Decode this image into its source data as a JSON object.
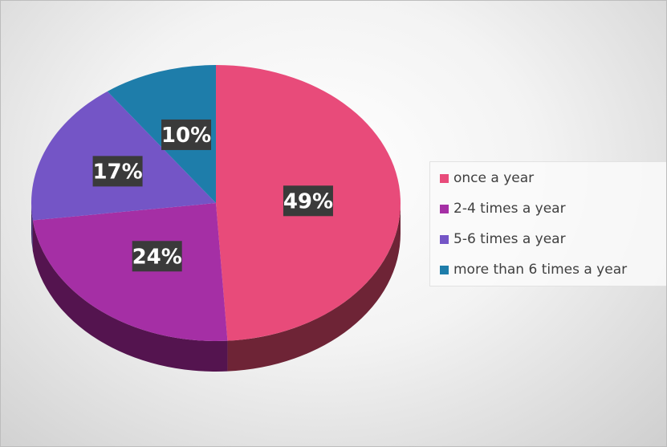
{
  "chart_data": {
    "type": "pie",
    "title": "",
    "categories": [
      "once a year",
      "2-4 times a year",
      "5-6 times a year",
      "more than 6 times a year"
    ],
    "values": [
      49,
      24,
      17,
      10
    ],
    "labels": [
      "49%",
      "24%",
      "17%",
      "10%"
    ],
    "colors": [
      "#E84B7A",
      "#A52FA5",
      "#7455C6",
      "#1E7DAA"
    ],
    "side_colors": [
      "#6E2436",
      "#54144F",
      "#3D2B6B",
      "#0F4560"
    ],
    "legend_position": "right",
    "style": "3d"
  }
}
